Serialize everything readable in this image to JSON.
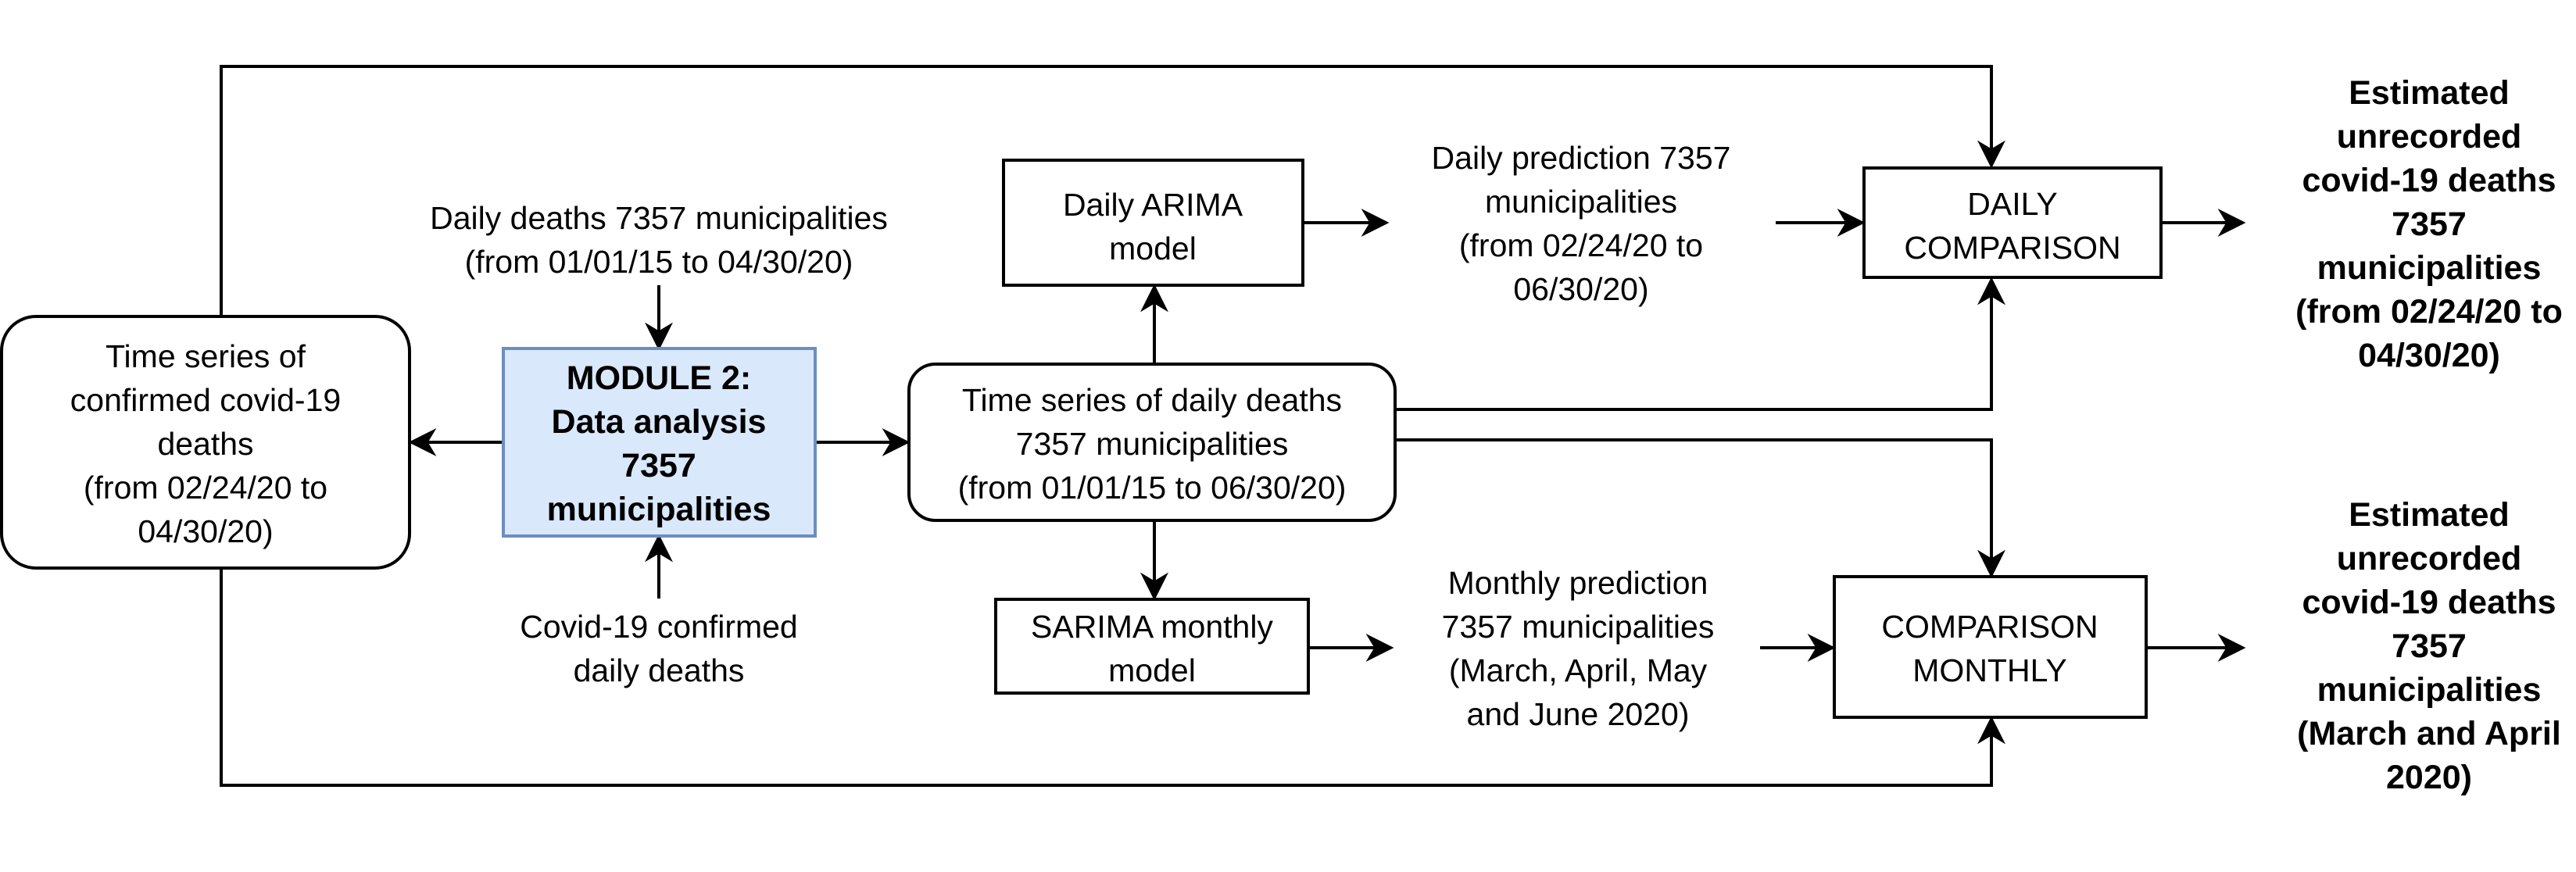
{
  "colors": {
    "module_fill": "#dae8fc",
    "module_stroke": "#6c8ebf",
    "line": "#000000",
    "background": "#ffffff"
  },
  "nodes": {
    "time_series_confirmed": [
      "Time series of",
      "confirmed covid-19",
      "deaths",
      "(from 02/24/20 to",
      "04/30/20)"
    ],
    "module2": [
      "MODULE 2:",
      "Data analysis",
      "7357",
      "municipalities"
    ],
    "daily_deaths_input": [
      "Daily deaths 7357 municipalities",
      "(from 01/01/15 to 04/30/20)"
    ],
    "covid_confirmed_input": [
      "Covid-19 confirmed",
      "daily deaths"
    ],
    "time_series_daily": [
      "Time series of daily deaths",
      "7357 municipalities",
      "(from 01/01/15 to 06/30/20)"
    ],
    "daily_arima": [
      "Daily ARIMA",
      "model"
    ],
    "sarima_monthly": [
      "SARIMA monthly",
      "model"
    ],
    "daily_prediction": [
      "Daily prediction 7357",
      "municipalities",
      "(from 02/24/20 to",
      "06/30/20)"
    ],
    "monthly_prediction": [
      "Monthly prediction",
      "7357 municipalities",
      "(March, April, May",
      "and June 2020)"
    ],
    "daily_comparison": [
      "DAILY",
      "COMPARISON"
    ],
    "comparison_monthly": [
      "COMPARISON",
      "MONTHLY"
    ],
    "estimated_daily": [
      "Estimated",
      "unrecorded",
      "covid-19 deaths",
      "7357",
      "municipalities",
      "(from 02/24/20 to",
      "04/30/20)"
    ],
    "estimated_monthly": [
      "Estimated",
      "unrecorded",
      "covid-19 deaths",
      "7357",
      "municipalities",
      "(March and April",
      "2020)"
    ]
  }
}
